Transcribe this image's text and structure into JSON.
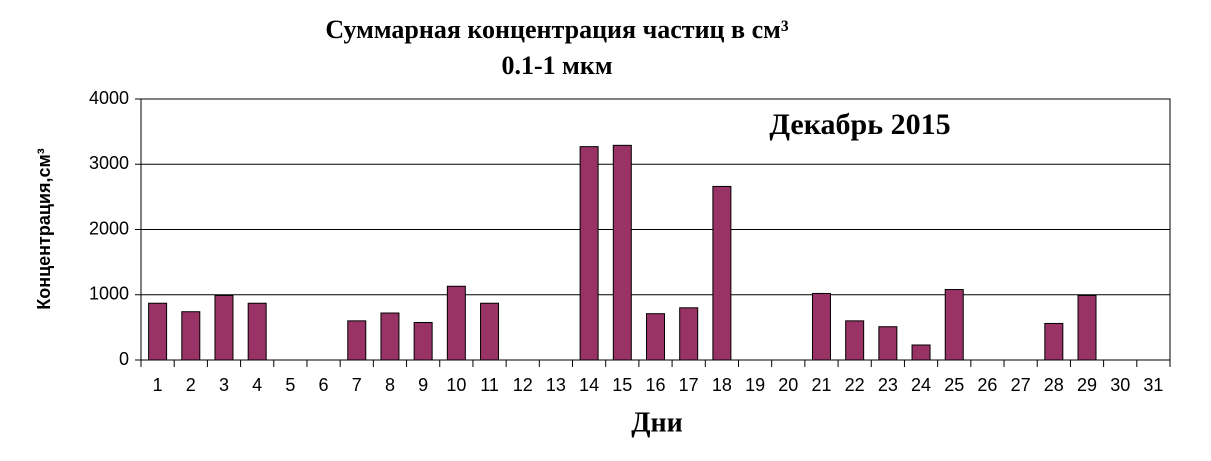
{
  "chart_data": {
    "type": "bar",
    "title": "Суммарная концентрация частиц  в см³",
    "subtitle": "0.1-1 мкм",
    "annotation": "Декабрь 2015",
    "x_label": "Дни",
    "y_label": "Концентрация,см³",
    "categories": [
      "1",
      "2",
      "3",
      "4",
      "5",
      "6",
      "7",
      "8",
      "9",
      "10",
      "11",
      "12",
      "13",
      "14",
      "15",
      "16",
      "17",
      "18",
      "19",
      "20",
      "21",
      "22",
      "23",
      "24",
      "25",
      "26",
      "27",
      "28",
      "29",
      "30",
      "31"
    ],
    "values": [
      870,
      740,
      990,
      870,
      null,
      null,
      600,
      720,
      575,
      1130,
      870,
      null,
      null,
      3270,
      3290,
      710,
      800,
      2660,
      null,
      null,
      1020,
      600,
      510,
      230,
      1080,
      null,
      null,
      560,
      990,
      null,
      null
    ],
    "color": "#993366",
    "ylim": [
      0,
      4000
    ],
    "yticks": [
      0,
      1000,
      2000,
      3000,
      4000
    ],
    "grid": true
  }
}
